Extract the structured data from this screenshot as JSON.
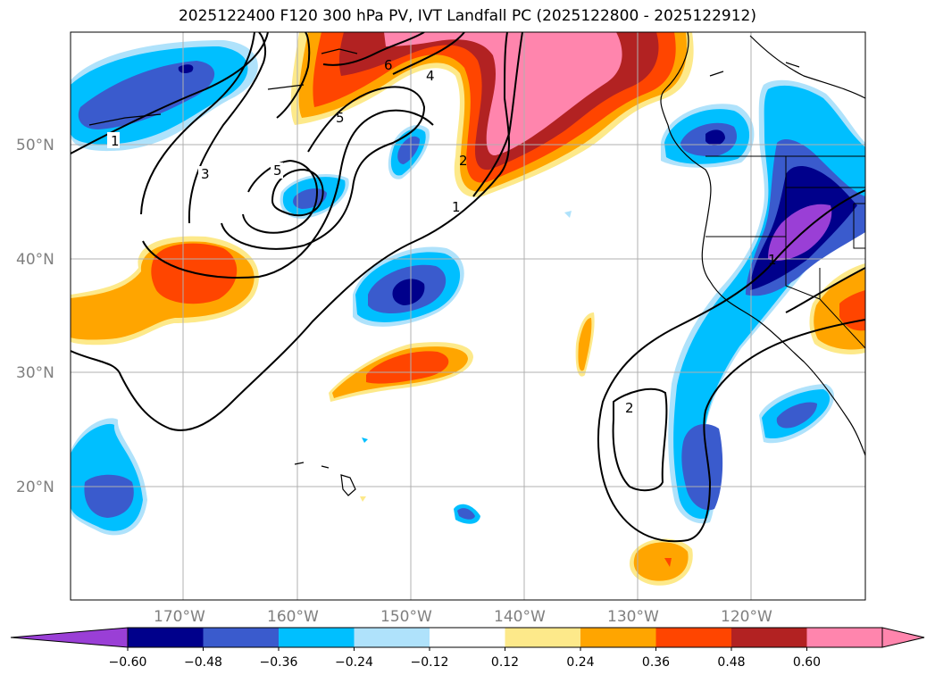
{
  "title": "2025122400 F120 300 hPa PV, IVT Landfall PC (2025122800 - 2025122912)",
  "lat_labels": [
    "50°N",
    "40°N",
    "30°N",
    "20°N"
  ],
  "lon_labels": [
    "170°W",
    "160°W",
    "150°W",
    "140°W",
    "130°W",
    "120°W"
  ],
  "colorbar": {
    "ticks": [
      "−0.60",
      "−0.48",
      "−0.36",
      "−0.24",
      "−0.12",
      "0.12",
      "0.24",
      "0.36",
      "0.48",
      "0.60"
    ],
    "colors": [
      "#9a3fd6",
      "#00008b",
      "#3a5bcd",
      "#00bfff",
      "#afe2fb",
      "#ffffff",
      "#fde98a",
      "#ffa500",
      "#ff4500",
      "#b22222",
      "#ff85ad",
      "#ff85ad"
    ]
  },
  "contour_labels": [
    "1",
    "3",
    "5",
    "5",
    "6",
    "4",
    "2",
    "1",
    "2",
    "1"
  ],
  "palette": {
    "neg1": "#9a3fd6",
    "neg2": "#00008b",
    "neg3": "#3a5bcd",
    "neg4": "#00bfff",
    "neg5": "#afe2fb",
    "pos1": "#fde98a",
    "pos2": "#ffa500",
    "pos3": "#ff4500",
    "pos4": "#b22222",
    "pos5": "#ff85ad"
  }
}
